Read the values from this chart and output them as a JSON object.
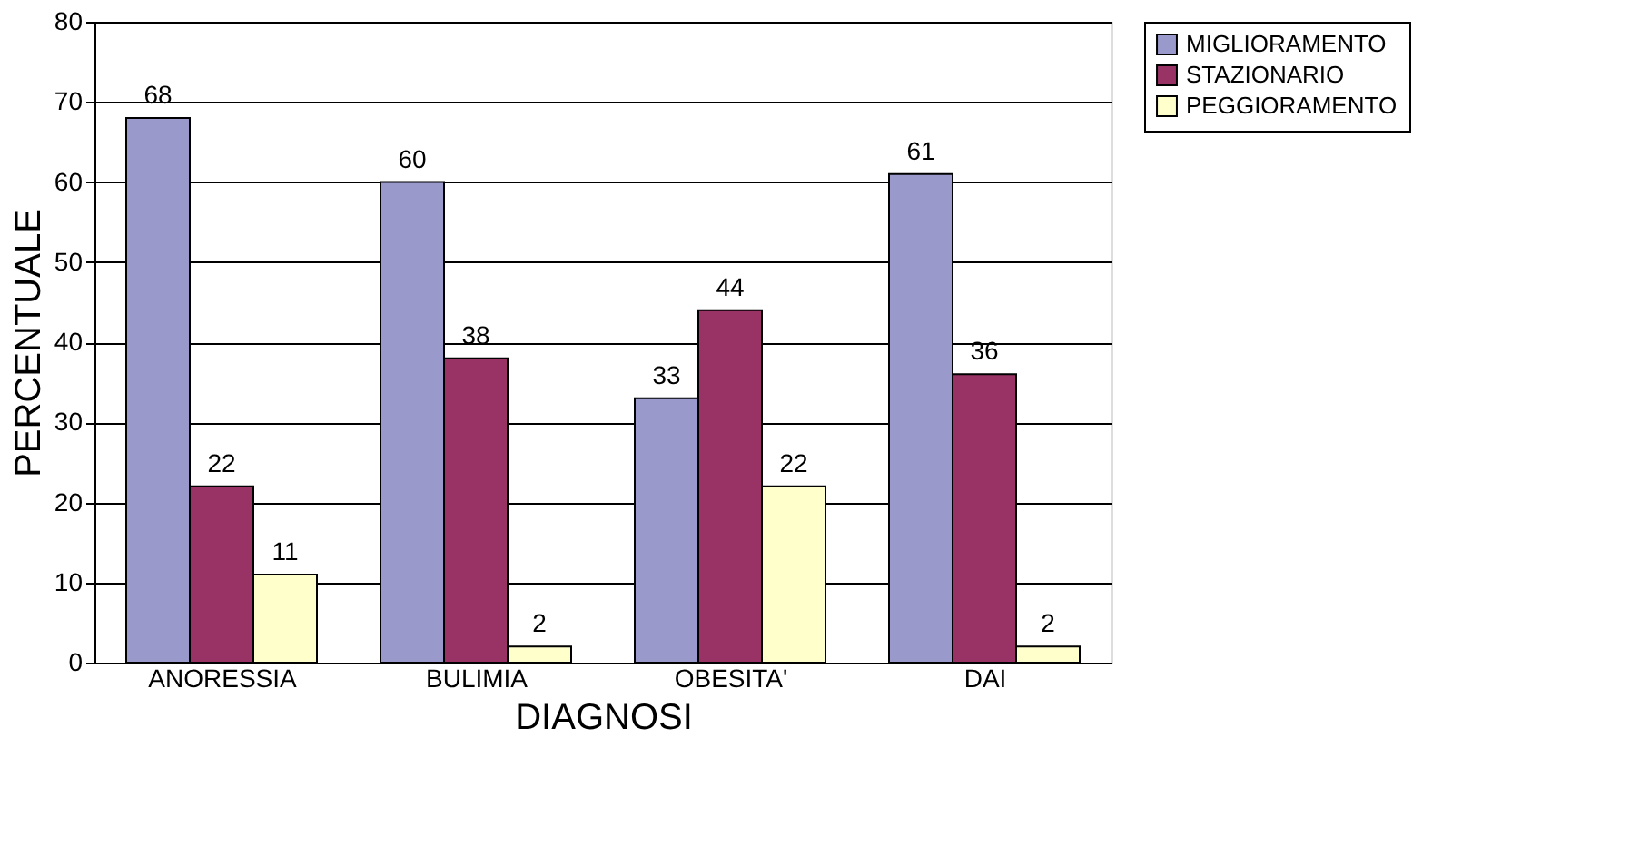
{
  "chart_data": {
    "type": "bar",
    "xlabel": "DIAGNOSI",
    "ylabel": "PERCENTUALE",
    "categories": [
      "ANORESSIA",
      "BULIMIA",
      "OBESITA'",
      "DAI"
    ],
    "series": [
      {
        "name": "MIGLIORAMENTO",
        "color": "#9999cc",
        "values": [
          68,
          60,
          33,
          61
        ]
      },
      {
        "name": "STAZIONARIO",
        "color": "#993366",
        "values": [
          22,
          38,
          44,
          36
        ]
      },
      {
        "name": "PEGGIORAMENTO",
        "color": "#ffffcc",
        "values": [
          11,
          2,
          22,
          2
        ]
      }
    ],
    "ylim": [
      0,
      80
    ],
    "yticks": [
      0,
      10,
      20,
      30,
      40,
      50,
      60,
      70,
      80
    ],
    "grid": "y",
    "legend": "right",
    "data_labels": true
  }
}
